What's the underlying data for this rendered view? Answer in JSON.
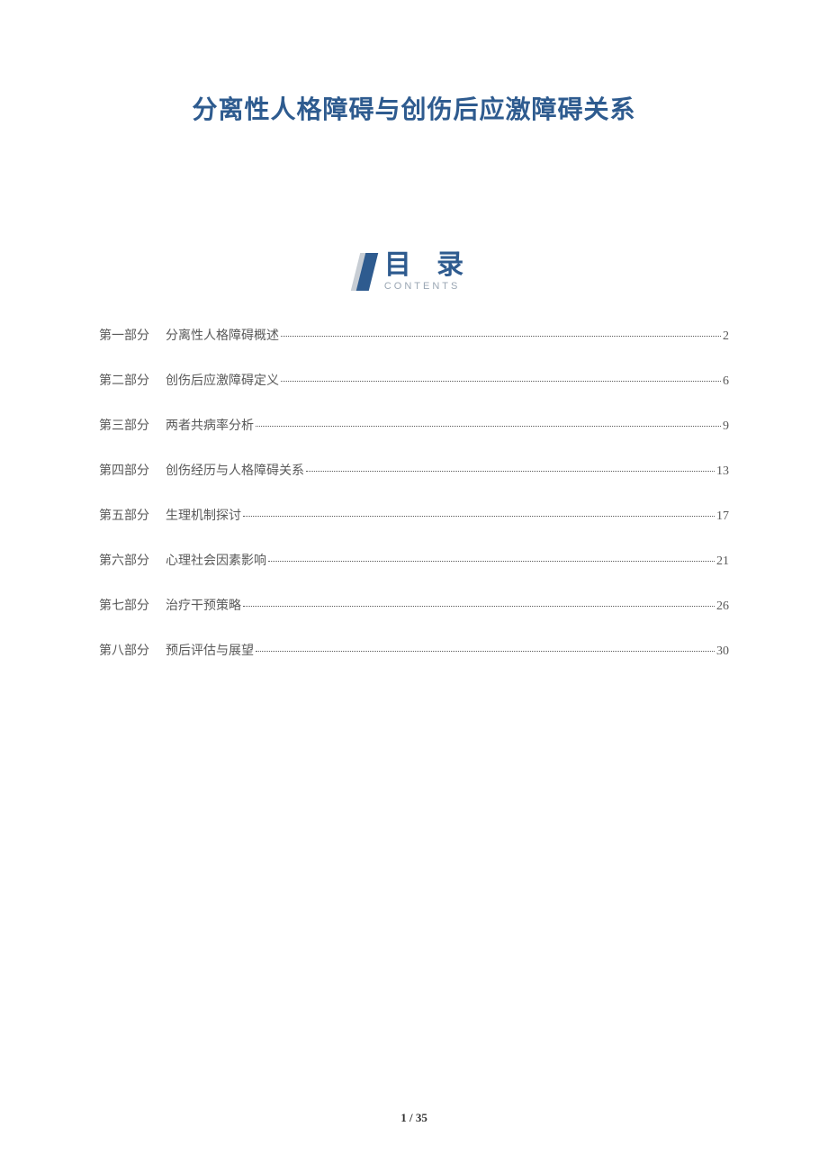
{
  "title": "分离性人格障碍与创伤后应激障碍关系",
  "toc_header": {
    "title": "目 录",
    "subtitle": "CONTENTS"
  },
  "toc": [
    {
      "part": "第一部分",
      "chapter": "分离性人格障碍概述",
      "page": "2"
    },
    {
      "part": "第二部分",
      "chapter": "创伤后应激障碍定义",
      "page": "6"
    },
    {
      "part": "第三部分",
      "chapter": "两者共病率分析",
      "page": "9"
    },
    {
      "part": "第四部分",
      "chapter": "创伤经历与人格障碍关系",
      "page": "13"
    },
    {
      "part": "第五部分",
      "chapter": "生理机制探讨",
      "page": "17"
    },
    {
      "part": "第六部分",
      "chapter": "心理社会因素影响",
      "page": "21"
    },
    {
      "part": "第七部分",
      "chapter": "治疗干预策略",
      "page": "26"
    },
    {
      "part": "第八部分",
      "chapter": "预后评估与展望",
      "page": "30"
    }
  ],
  "footer": {
    "current_page": "1",
    "separator": " / ",
    "total_pages": "35"
  },
  "colors": {
    "title_color": "#2e5b8f",
    "text_color": "#595959",
    "icon_back": "#c7cdd4",
    "icon_front": "#2e5b8f",
    "subtitle_color": "#9aa6b3",
    "background": "#ffffff"
  }
}
